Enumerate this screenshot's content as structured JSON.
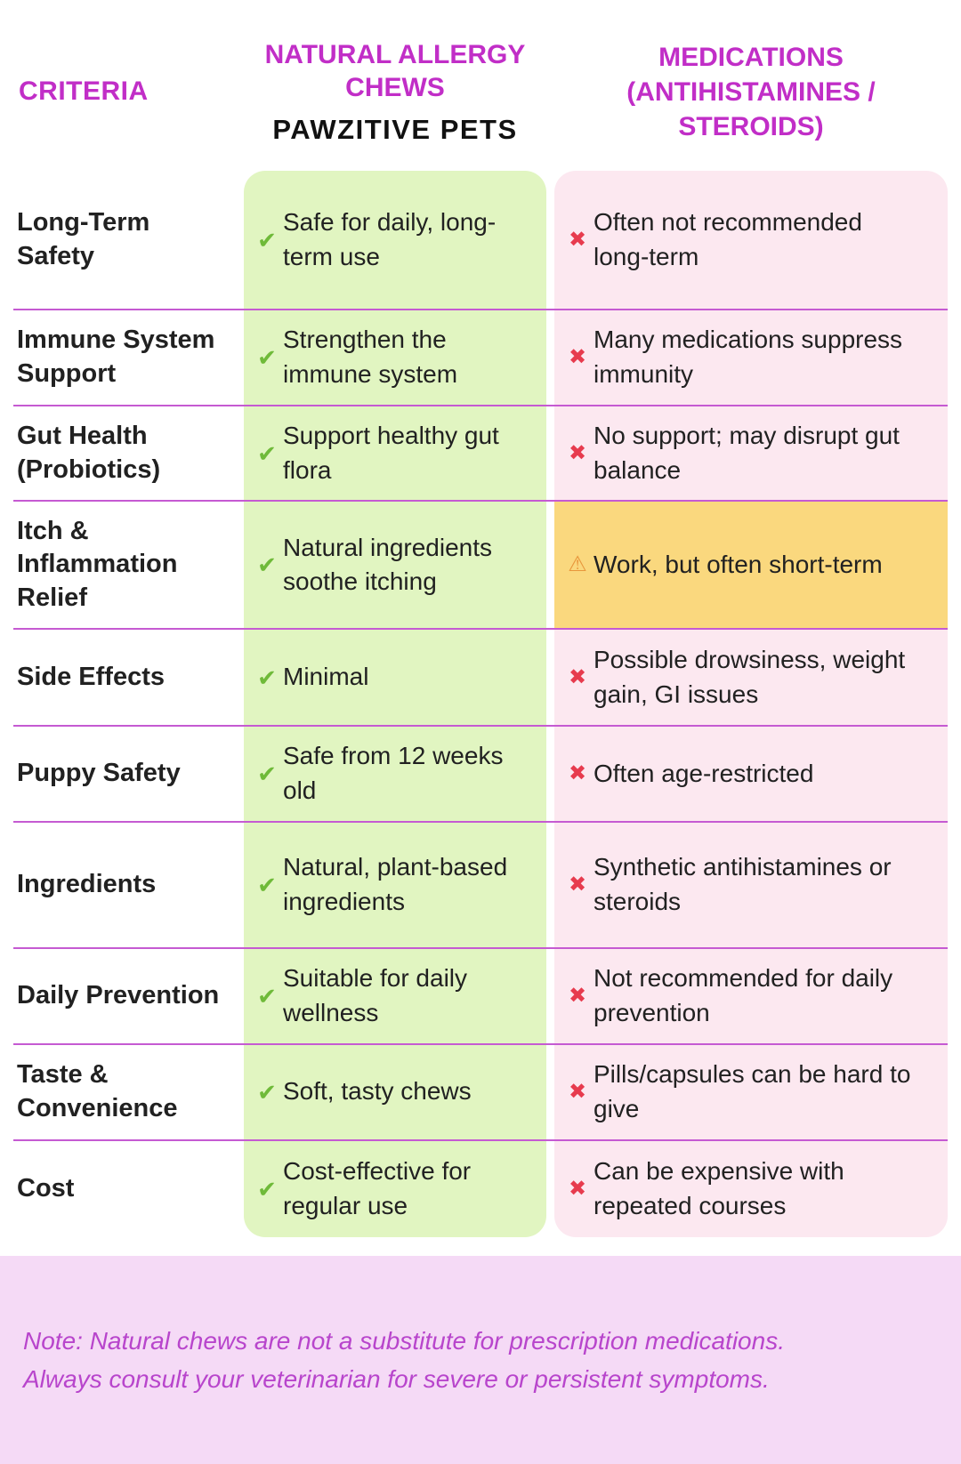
{
  "header": {
    "criteria_label": "CRITERIA",
    "natural_title": "NATURAL ALLERGY\nCHEWS",
    "brand": "PAWZITIVE PETS",
    "medications_title": "MEDICATIONS\n(ANTIHISTAMINES /\nSTEROIDS)"
  },
  "icons": {
    "positive": "✔",
    "negative": "✖",
    "warning": "⚠"
  },
  "chart_data": {
    "type": "table",
    "columns": [
      "CRITERIA",
      "NATURAL ALLERGY CHEWS (PAWZITIVE PETS)",
      "MEDICATIONS (ANTIHISTAMINES / STEROIDS)"
    ],
    "rows": [
      {
        "criteria": "Long-Term Safety",
        "natural": "Safe for daily, long-term use",
        "natural_status": "positive",
        "medication": "Often not recommended long-term",
        "medication_status": "negative"
      },
      {
        "criteria": "Immune System Support",
        "natural": "Strengthen the immune system",
        "natural_status": "positive",
        "medication": "Many medications suppress immunity",
        "medication_status": "negative"
      },
      {
        "criteria": "Gut Health (Probiotics)",
        "natural": "Support healthy gut flora",
        "natural_status": "positive",
        "medication": "No support; may disrupt gut balance",
        "medication_status": "negative"
      },
      {
        "criteria": "Itch & Inflammation Relief",
        "natural": "Natural ingredients soothe itching",
        "natural_status": "positive",
        "medication": "Work, but often short-term",
        "medication_status": "warning"
      },
      {
        "criteria": "Side Effects",
        "natural": "Minimal",
        "natural_status": "positive",
        "medication": "Possible drowsiness, weight gain, GI issues",
        "medication_status": "negative"
      },
      {
        "criteria": "Puppy Safety",
        "natural": "Safe from 12 weeks old",
        "natural_status": "positive",
        "medication": "Often age-restricted",
        "medication_status": "negative"
      },
      {
        "criteria": "Ingredients",
        "natural": "Natural, plant-based ingredients",
        "natural_status": "positive",
        "medication": "Synthetic antihistamines or steroids",
        "medication_status": "negative"
      },
      {
        "criteria": "Daily Prevention",
        "natural": "Suitable for daily wellness",
        "natural_status": "positive",
        "medication": "Not recommended for daily prevention",
        "medication_status": "negative"
      },
      {
        "criteria": "Taste & Convenience",
        "natural": "Soft, tasty chews",
        "natural_status": "positive",
        "medication": "Pills/capsules can be hard to give",
        "medication_status": "negative"
      },
      {
        "criteria": "Cost",
        "natural": "Cost-effective for regular use",
        "natural_status": "positive",
        "medication": "Can be expensive with repeated courses",
        "medication_status": "negative"
      }
    ]
  },
  "note": "Note: Natural chews are not a substitute for prescription medications.\nAlways consult your veterinarian for severe or persistent symptoms.",
  "colors": {
    "magenta": "#c12ec7",
    "line": "#c55ad2",
    "green_bg": "#e1f5c1",
    "check_green": "#6fba39",
    "pink_bg": "#fce8f0",
    "cross_red": "#e73b4e",
    "amber_bg": "#fad87e",
    "warn_orange": "#e8973c",
    "note_bg": "#f5daf6",
    "note_text": "#b845cc",
    "text_dark": "#212121"
  }
}
